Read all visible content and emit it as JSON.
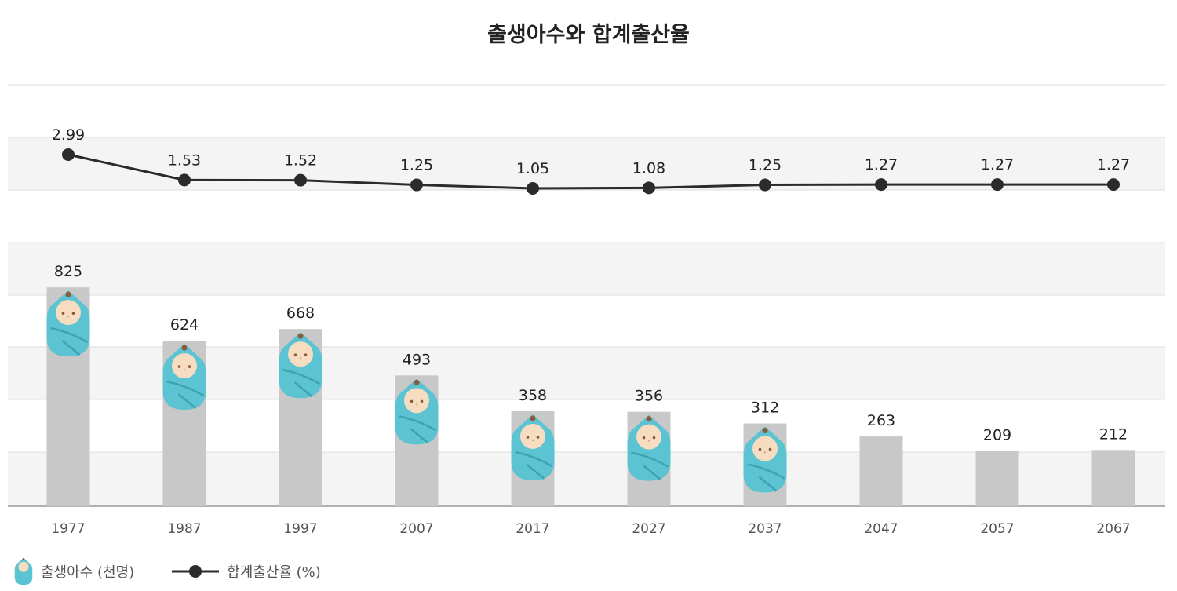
{
  "chart_data": {
    "type": "bar+line",
    "title": "출생아수와 합계출산율",
    "categories": [
      "1977",
      "1987",
      "1997",
      "2007",
      "2017",
      "2027",
      "2037",
      "2047",
      "2057",
      "2067"
    ],
    "series": [
      {
        "name": "출생아수 (천명)",
        "type": "bar",
        "values": [
          825,
          624,
          668,
          493,
          358,
          356,
          312,
          263,
          209,
          212
        ],
        "color": "#c9c8c9",
        "icon": "swaddled-baby-icon",
        "icon_color": "#5bc3d1"
      },
      {
        "name": "합계출산율 (%)",
        "type": "line",
        "values": [
          2.99,
          1.53,
          1.52,
          1.25,
          1.05,
          1.08,
          1.25,
          1.27,
          1.27,
          1.27
        ],
        "color": "#2b2b2b"
      }
    ],
    "baby_icon_years": [
      "1977",
      "1987",
      "1997",
      "2007",
      "2017",
      "2027",
      "2037"
    ],
    "grid": true,
    "legend_position": "bottom-left"
  }
}
